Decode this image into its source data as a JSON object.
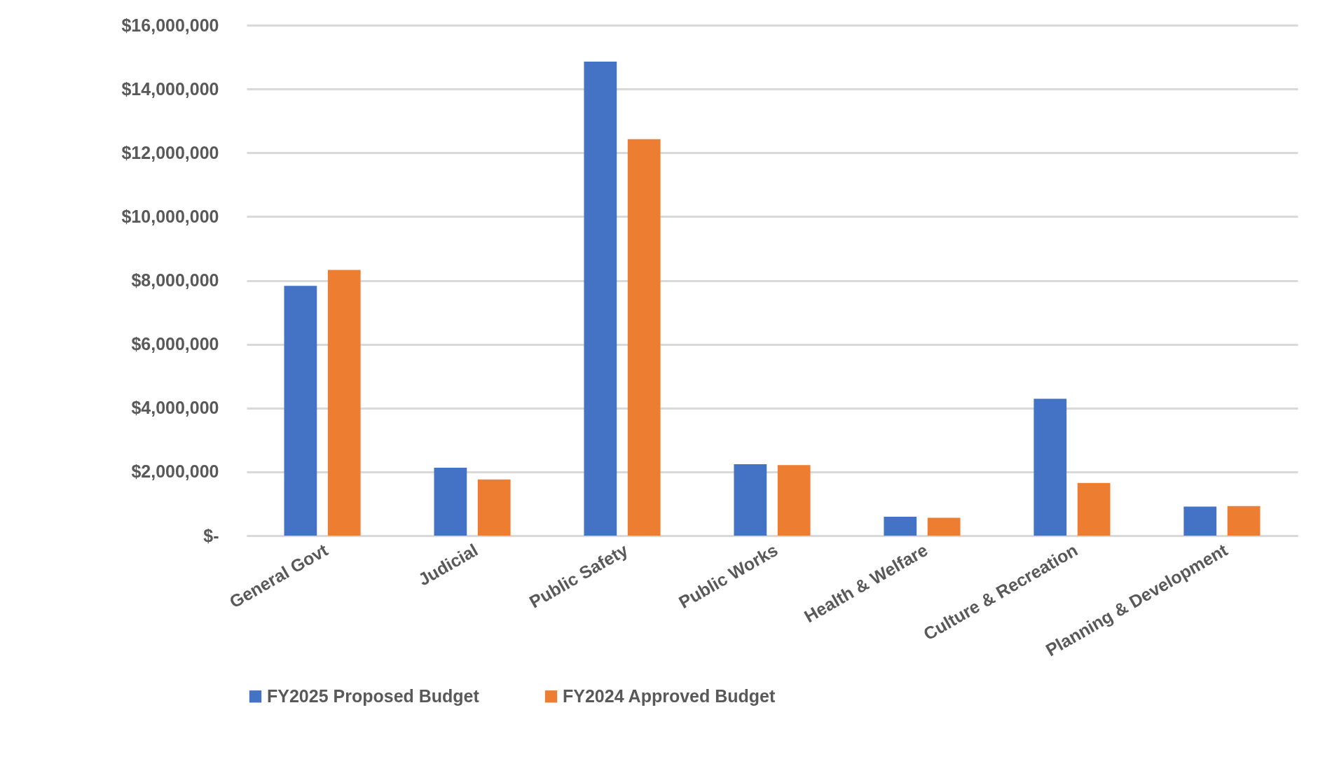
{
  "chart_data": {
    "type": "bar",
    "categories": [
      "General Govt",
      "Judicial",
      "Public Safety",
      "Public Works",
      "Health & Welfare",
      "Culture & Recreation",
      "Planning & Development"
    ],
    "series": [
      {
        "name": "FY2025 Proposed Budget",
        "color": "#4472c4",
        "values": [
          7830000,
          2130000,
          14860000,
          2240000,
          590000,
          4290000,
          910000
        ]
      },
      {
        "name": "FY2024 Approved Budget",
        "color": "#ed7d31",
        "values": [
          8330000,
          1760000,
          12430000,
          2210000,
          560000,
          1650000,
          930000
        ]
      }
    ],
    "ylim": [
      0,
      16000000
    ],
    "yticks": [
      {
        "value": 0,
        "label": "$-"
      },
      {
        "value": 2000000,
        "label": "$2,000,000"
      },
      {
        "value": 4000000,
        "label": "$4,000,000"
      },
      {
        "value": 6000000,
        "label": "$6,000,000"
      },
      {
        "value": 8000000,
        "label": "$8,000,000"
      },
      {
        "value": 10000000,
        "label": "$10,000,000"
      },
      {
        "value": 12000000,
        "label": "$12,000,000"
      },
      {
        "value": 14000000,
        "label": "$14,000,000"
      },
      {
        "value": 16000000,
        "label": "$16,000,000"
      }
    ],
    "grid": "y",
    "legend": "bottom"
  }
}
